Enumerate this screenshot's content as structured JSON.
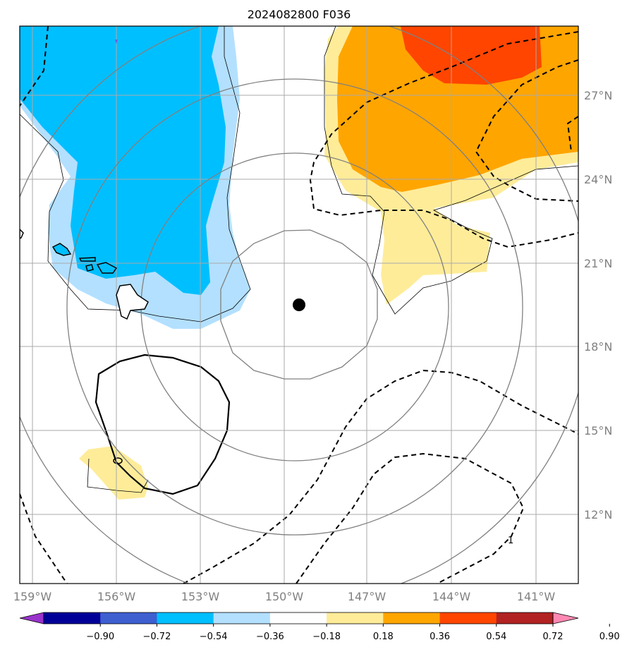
{
  "title": "2024082800 F036",
  "map": {
    "longitude_labels": [
      "159°W",
      "156°W",
      "153°W",
      "150°W",
      "147°W",
      "144°W",
      "141°W"
    ],
    "latitude_labels": [
      "27°N",
      "24°N",
      "21°N",
      "18°N",
      "15°N",
      "12°N"
    ],
    "contour_label": "1",
    "storm_center_marker": "black-dot"
  },
  "colorbar": {
    "ticks": [
      "−0.90",
      "−0.72",
      "−0.54",
      "−0.36",
      "−0.18",
      "0.18",
      "0.36",
      "0.54",
      "0.72",
      "0.90"
    ],
    "colors": [
      "#9933cc",
      "#000099",
      "#3d5fd0",
      "#00bfff",
      "#b3e0ff",
      "#ffffff",
      "#ffec99",
      "#ffa500",
      "#ff4500",
      "#b22222",
      "#ff88b3"
    ]
  },
  "colors": {
    "neg_strong": "#00bfff",
    "neg_weak": "#b3e0ff",
    "pos_weak": "#ffec99",
    "pos_mid": "#ffa500",
    "pos_strong": "#ff4500",
    "grid": "#aaaaaa",
    "range_rings": "#808080"
  }
}
